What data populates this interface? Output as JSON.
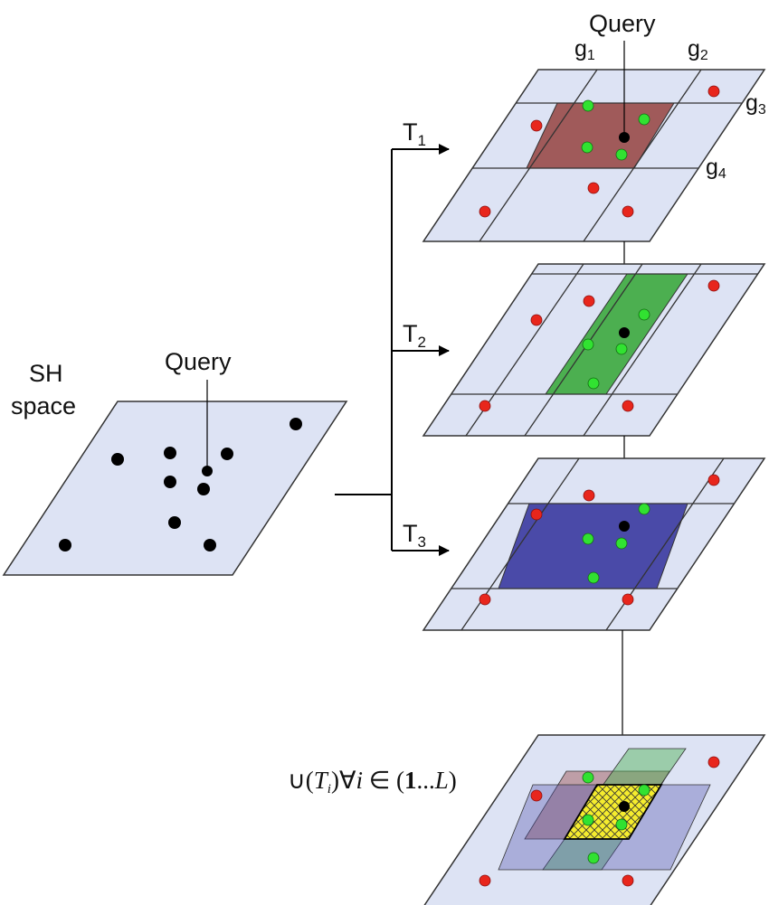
{
  "left_panel": {
    "title_line1": "SH",
    "title_line2": "space",
    "query_label": "Query"
  },
  "branches": [
    {
      "name": "T",
      "sub": "1"
    },
    {
      "name": "T",
      "sub": "2"
    },
    {
      "name": "T",
      "sub": "3"
    }
  ],
  "top_panel": {
    "query_label": "Query",
    "grid_labels": [
      {
        "name": "g",
        "sub": "1"
      },
      {
        "name": "g",
        "sub": "2"
      },
      {
        "name": "g",
        "sub": "3"
      },
      {
        "name": "g",
        "sub": "4"
      }
    ]
  },
  "union_label": {
    "prefix": "∪(",
    "var": "T",
    "var_sub": "i",
    "middle": ")∀",
    "index": "i",
    "elem": " ∈ (",
    "range_start": "1",
    "range_dots": "...",
    "range_end": "L",
    "suffix": ")"
  },
  "colors": {
    "plane_fill": "#dde3f4",
    "plane_stroke": "#333333",
    "cell_t1": "#a05a5a",
    "cell_t2": "#4caf50",
    "cell_t3": "#4a4aa8",
    "intersection": "#f5ec2e",
    "point_black": "#000000",
    "point_red": "#e8261c",
    "point_green": "#31e231"
  }
}
